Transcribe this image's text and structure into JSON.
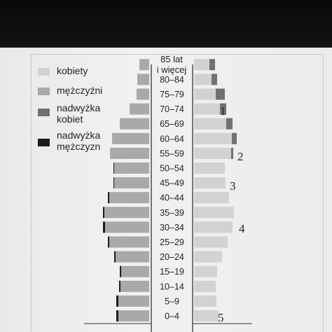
{
  "chart_data": {
    "type": "bar",
    "orientation": "horizontal",
    "subtype": "population-pyramid",
    "age_axis_title": "85 lat i więcej",
    "categories": [
      "0–4",
      "5–9",
      "10–14",
      "15–19",
      "20–24",
      "25–29",
      "30–34",
      "35–39",
      "40–44",
      "45–49",
      "50–54",
      "55–59",
      "60–64",
      "65–69",
      "70–74",
      "75–79",
      "80–84",
      "85 lat i więcej"
    ],
    "series": [
      {
        "name": "mężczyźni",
        "side": "left",
        "values": [
          44,
          44,
          41,
          40,
          48,
          57,
          63,
          64,
          57,
          50,
          50,
          56,
          53,
          42,
          28,
          18,
          17,
          14
        ]
      },
      {
        "name": "kobiety",
        "side": "right",
        "values": [
          35,
          32,
          31,
          33,
          40,
          48,
          55,
          57,
          50,
          45,
          44,
          53,
          54,
          46,
          37,
          31,
          25,
          22
        ]
      },
      {
        "name": "nadwyżka kobiet",
        "side": "right",
        "values": [
          0,
          0,
          0,
          0,
          0,
          0,
          0,
          0,
          0,
          0,
          0,
          3,
          7,
          9,
          9,
          13,
          8,
          8
        ]
      },
      {
        "name": "nadwyżka mężczyzn",
        "side": "left",
        "values": [
          3,
          3,
          2,
          2,
          2,
          2,
          3,
          2,
          2,
          1,
          1,
          0,
          0,
          0,
          0,
          0,
          0,
          0
        ]
      }
    ],
    "annotations": [
      "1",
      "2",
      "3",
      "4",
      "5"
    ],
    "colors": {
      "kobiety": "#d2d2d2",
      "mezczyzni": "#a9a9a9",
      "nadwyzka_kobiet": "#717171",
      "nadwyzka_mezczyzn": "#1c1c1c"
    },
    "legend_position": "top-left",
    "grid": false
  },
  "legend": [
    {
      "label": "kobiety",
      "color": "#d2d2d2"
    },
    {
      "label": "mężczyźni",
      "color": "#a9a9a9"
    },
    {
      "label": "nadwyżka\nkobiet",
      "color": "#717171"
    },
    {
      "label": "nadwyżka\nmężczyzn",
      "color": "#1c1c1c"
    }
  ],
  "header": {
    "age_line1": "85 lat",
    "age_line2": "i więcej"
  }
}
